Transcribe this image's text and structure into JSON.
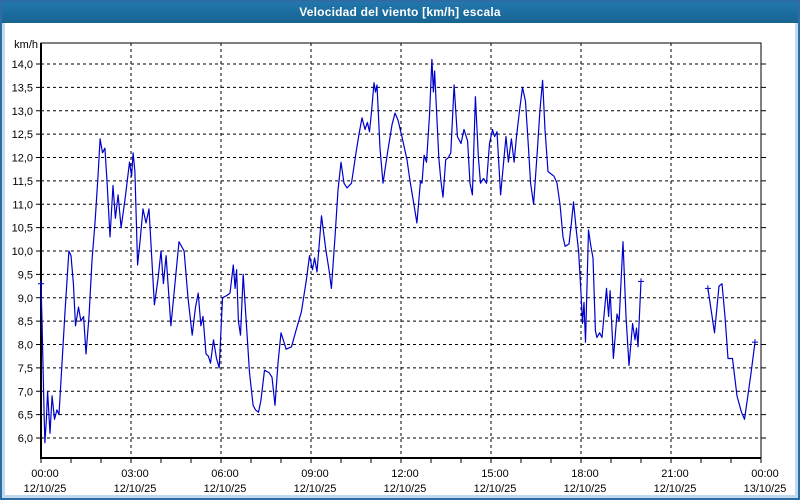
{
  "window": {
    "title": "Velocidad del viento [km/h] escala"
  },
  "colors": {
    "titlebar": "#1b6c9e",
    "title_text": "#ffffff",
    "frame": "#2e6da4",
    "frame_light": "#bfd9ee",
    "plot_background": "#ffffff",
    "grid": "#000000",
    "axis": "#000000",
    "tick_text": "#000000",
    "line": "#0000cd"
  },
  "chart_data": {
    "type": "line",
    "title": "Velocidad del viento [km/h] escala",
    "ylabel": "km/h",
    "xlabel": "",
    "ylim": [
      5.55,
      14.45
    ],
    "xlim_hours": [
      0,
      24
    ],
    "grid": "dashed",
    "legend": "none",
    "y_ticks": {
      "values": [
        14.0,
        13.5,
        13.0,
        12.5,
        12.0,
        11.5,
        11.0,
        10.5,
        10.0,
        9.5,
        9.0,
        8.5,
        8.0,
        7.5,
        7.0,
        6.5,
        6.0
      ],
      "labels": [
        "14,0",
        "13,5",
        "13,0",
        "12,5",
        "12,0",
        "11,5",
        "11,0",
        "10,5",
        "10,0",
        "9,5",
        "9,0",
        "8,5",
        "8,0",
        "7,5",
        "7,0",
        "6,5",
        "6,0"
      ]
    },
    "x_ticks": [
      {
        "hour": 0,
        "time": "00:00",
        "date": "12/10/25"
      },
      {
        "hour": 3,
        "time": "03:00",
        "date": "12/10/25"
      },
      {
        "hour": 6,
        "time": "06:00",
        "date": "12/10/25"
      },
      {
        "hour": 9,
        "time": "09:00",
        "date": "12/10/25"
      },
      {
        "hour": 12,
        "time": "12:00",
        "date": "12/10/25"
      },
      {
        "hour": 15,
        "time": "15:00",
        "date": "12/10/25"
      },
      {
        "hour": 18,
        "time": "18:00",
        "date": "12/10/25"
      },
      {
        "hour": 21,
        "time": "21:00",
        "date": "12/10/25"
      },
      {
        "hour": 24,
        "time": "00:00",
        "date": "13/10/25"
      }
    ],
    "minor_tick_every_hours": 1,
    "series": [
      {
        "name": "wind-speed-km-h",
        "color": "#0000cd",
        "segments": [
          [
            [
              0.0,
              9.3
            ],
            [
              0.03,
              8.6
            ],
            [
              0.1,
              6.6
            ],
            [
              0.13,
              5.9
            ],
            [
              0.18,
              6.4
            ],
            [
              0.22,
              7.0
            ],
            [
              0.3,
              6.1
            ],
            [
              0.37,
              6.9
            ],
            [
              0.45,
              6.4
            ],
            [
              0.53,
              6.6
            ],
            [
              0.6,
              6.5
            ],
            [
              0.7,
              7.6
            ],
            [
              0.8,
              8.7
            ],
            [
              0.93,
              10.0
            ],
            [
              1.0,
              9.9
            ],
            [
              1.08,
              9.3
            ],
            [
              1.15,
              8.4
            ],
            [
              1.25,
              8.8
            ],
            [
              1.33,
              8.5
            ],
            [
              1.42,
              8.6
            ],
            [
              1.5,
              7.8
            ],
            [
              1.6,
              8.6
            ],
            [
              1.7,
              9.8
            ],
            [
              1.8,
              10.6
            ],
            [
              1.9,
              11.6
            ],
            [
              1.97,
              12.4
            ],
            [
              2.05,
              12.1
            ],
            [
              2.13,
              12.2
            ],
            [
              2.2,
              11.5
            ],
            [
              2.3,
              10.3
            ],
            [
              2.4,
              11.4
            ],
            [
              2.48,
              10.7
            ],
            [
              2.57,
              11.2
            ],
            [
              2.67,
              10.5
            ],
            [
              2.8,
              11.1
            ],
            [
              2.95,
              11.9
            ],
            [
              3.02,
              11.6
            ],
            [
              3.07,
              12.1
            ],
            [
              3.13,
              11.7
            ],
            [
              3.22,
              9.7
            ],
            [
              3.3,
              10.2
            ],
            [
              3.4,
              10.9
            ],
            [
              3.5,
              10.6
            ],
            [
              3.6,
              10.9
            ],
            [
              3.78,
              8.85
            ],
            [
              3.9,
              9.4
            ],
            [
              4.0,
              10.0
            ],
            [
              4.08,
              9.3
            ],
            [
              4.17,
              9.9
            ],
            [
              4.33,
              8.4
            ],
            [
              4.45,
              9.2
            ],
            [
              4.6,
              10.2
            ],
            [
              4.77,
              10.0
            ],
            [
              4.9,
              9.0
            ],
            [
              5.04,
              8.2
            ],
            [
              5.15,
              8.8
            ],
            [
              5.24,
              9.1
            ],
            [
              5.33,
              8.4
            ],
            [
              5.4,
              8.6
            ],
            [
              5.5,
              7.8
            ],
            [
              5.58,
              7.75
            ],
            [
              5.65,
              7.6
            ],
            [
              5.75,
              8.1
            ],
            [
              5.85,
              7.7
            ],
            [
              5.94,
              7.5
            ],
            [
              6.05,
              9.0
            ],
            [
              6.2,
              9.05
            ],
            [
              6.3,
              9.1
            ],
            [
              6.41,
              9.7
            ],
            [
              6.47,
              9.2
            ],
            [
              6.52,
              9.6
            ],
            [
              6.58,
              8.5
            ],
            [
              6.65,
              8.2
            ],
            [
              6.74,
              9.5
            ],
            [
              6.85,
              8.4
            ],
            [
              6.95,
              7.4
            ],
            [
              7.07,
              6.7
            ],
            [
              7.15,
              6.6
            ],
            [
              7.25,
              6.55
            ],
            [
              7.33,
              6.8
            ],
            [
              7.45,
              7.45
            ],
            [
              7.6,
              7.4
            ],
            [
              7.7,
              7.3
            ],
            [
              7.8,
              6.7
            ],
            [
              7.9,
              7.6
            ],
            [
              8.0,
              8.25
            ],
            [
              8.1,
              8.05
            ],
            [
              8.17,
              7.9
            ],
            [
              8.35,
              7.95
            ],
            [
              8.5,
              8.3
            ],
            [
              8.68,
              8.7
            ],
            [
              8.85,
              9.4
            ],
            [
              8.95,
              9.9
            ],
            [
              9.05,
              9.6
            ],
            [
              9.12,
              9.85
            ],
            [
              9.2,
              9.55
            ],
            [
              9.35,
              10.75
            ],
            [
              9.5,
              10.0
            ],
            [
              9.6,
              9.6
            ],
            [
              9.68,
              9.2
            ],
            [
              9.8,
              10.3
            ],
            [
              9.9,
              11.3
            ],
            [
              10.0,
              11.9
            ],
            [
              10.1,
              11.45
            ],
            [
              10.2,
              11.35
            ],
            [
              10.35,
              11.45
            ],
            [
              10.5,
              12.1
            ],
            [
              10.6,
              12.5
            ],
            [
              10.7,
              12.85
            ],
            [
              10.8,
              12.6
            ],
            [
              10.88,
              12.75
            ],
            [
              10.95,
              12.55
            ],
            [
              11.02,
              13.0
            ],
            [
              11.1,
              13.6
            ],
            [
              11.15,
              13.4
            ],
            [
              11.2,
              13.55
            ],
            [
              11.3,
              12.2
            ],
            [
              11.4,
              11.45
            ],
            [
              11.55,
              12.1
            ],
            [
              11.7,
              12.7
            ],
            [
              11.8,
              12.95
            ],
            [
              11.9,
              12.8
            ],
            [
              12.03,
              12.45
            ],
            [
              12.2,
              11.95
            ],
            [
              12.3,
              11.5
            ],
            [
              12.43,
              11.0
            ],
            [
              12.53,
              10.6
            ],
            [
              12.65,
              11.5
            ],
            [
              12.7,
              11.45
            ],
            [
              12.77,
              12.05
            ],
            [
              12.85,
              11.9
            ],
            [
              12.95,
              12.9
            ],
            [
              13.03,
              14.1
            ],
            [
              13.08,
              13.4
            ],
            [
              13.12,
              13.85
            ],
            [
              13.2,
              12.8
            ],
            [
              13.26,
              12.0
            ],
            [
              13.33,
              11.5
            ],
            [
              13.4,
              11.15
            ],
            [
              13.49,
              11.95
            ],
            [
              13.58,
              12.0
            ],
            [
              13.66,
              12.1
            ],
            [
              13.77,
              13.55
            ],
            [
              13.88,
              12.45
            ],
            [
              14.0,
              12.3
            ],
            [
              14.1,
              12.6
            ],
            [
              14.22,
              12.35
            ],
            [
              14.3,
              11.45
            ],
            [
              14.38,
              11.2
            ],
            [
              14.48,
              13.3
            ],
            [
              14.58,
              12.0
            ],
            [
              14.65,
              11.45
            ],
            [
              14.75,
              11.55
            ],
            [
              14.85,
              11.45
            ],
            [
              14.95,
              12.3
            ],
            [
              15.05,
              12.6
            ],
            [
              15.12,
              12.45
            ],
            [
              15.2,
              12.55
            ],
            [
              15.32,
              11.2
            ],
            [
              15.42,
              11.9
            ],
            [
              15.5,
              12.45
            ],
            [
              15.58,
              11.9
            ],
            [
              15.68,
              12.4
            ],
            [
              15.77,
              11.9
            ],
            [
              15.85,
              12.45
            ],
            [
              15.95,
              13.0
            ],
            [
              16.05,
              13.5
            ],
            [
              16.15,
              13.2
            ],
            [
              16.25,
              12.2
            ],
            [
              16.32,
              11.45
            ],
            [
              16.42,
              11.0
            ],
            [
              16.55,
              12.2
            ],
            [
              16.63,
              13.0
            ],
            [
              16.72,
              13.65
            ],
            [
              16.8,
              12.6
            ],
            [
              16.9,
              11.7
            ],
            [
              17.0,
              11.65
            ],
            [
              17.1,
              11.6
            ],
            [
              17.2,
              11.45
            ],
            [
              17.3,
              11.0
            ],
            [
              17.4,
              10.3
            ],
            [
              17.47,
              10.1
            ],
            [
              17.6,
              10.15
            ],
            [
              17.68,
              10.6
            ],
            [
              17.75,
              11.05
            ],
            [
              17.85,
              10.4
            ],
            [
              17.92,
              10.0
            ],
            [
              18.0,
              9.1
            ],
            [
              18.05,
              8.45
            ],
            [
              18.1,
              8.9
            ],
            [
              18.15,
              8.05
            ],
            [
              18.25,
              10.45
            ],
            [
              18.33,
              10.1
            ],
            [
              18.4,
              9.85
            ],
            [
              18.48,
              8.3
            ],
            [
              18.53,
              8.15
            ],
            [
              18.62,
              8.25
            ],
            [
              18.7,
              8.15
            ],
            [
              18.85,
              9.2
            ],
            [
              18.92,
              8.6
            ],
            [
              18.97,
              9.15
            ],
            [
              19.08,
              7.7
            ],
            [
              19.2,
              8.65
            ],
            [
              19.27,
              8.5
            ],
            [
              19.4,
              10.2
            ],
            [
              19.5,
              8.6
            ],
            [
              19.6,
              7.55
            ],
            [
              19.72,
              8.45
            ],
            [
              19.8,
              8.1
            ],
            [
              19.85,
              8.35
            ],
            [
              19.9,
              7.95
            ],
            [
              20.0,
              9.35
            ]
          ],
          [
            [
              22.23,
              9.2
            ],
            [
              22.3,
              8.9
            ],
            [
              22.45,
              8.25
            ],
            [
              22.6,
              9.25
            ],
            [
              22.7,
              9.3
            ],
            [
              22.8,
              8.6
            ],
            [
              22.9,
              7.7
            ],
            [
              23.05,
              7.7
            ],
            [
              23.2,
              6.9
            ],
            [
              23.35,
              6.55
            ],
            [
              23.45,
              6.4
            ],
            [
              23.55,
              6.85
            ],
            [
              23.67,
              7.4
            ],
            [
              23.8,
              8.05
            ]
          ]
        ]
      }
    ]
  }
}
